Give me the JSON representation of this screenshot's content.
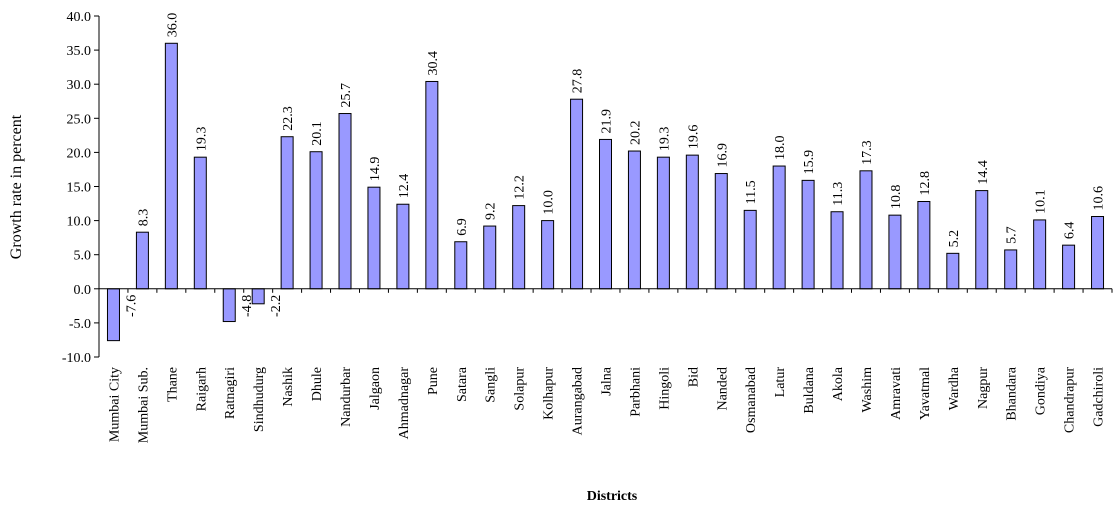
{
  "chart_data": {
    "type": "bar",
    "xlabel": "Districts",
    "ylabel": "Growth rate in percent",
    "ylim": [
      -10,
      40
    ],
    "yticks": [
      -10,
      -5,
      0,
      5,
      10,
      15,
      20,
      25,
      30,
      35,
      40
    ],
    "ytick_labels": [
      "-10.0",
      "-5.0",
      "0.0",
      "5.0",
      "10.0",
      "15.0",
      "20.0",
      "25.0",
      "30.0",
      "35.0",
      "40.0"
    ],
    "grid": false,
    "bar_color": "#9999ff",
    "bar_edge_color": "#000000",
    "categories": [
      "Mumbai City",
      "Mumbai Sub.",
      "Thane",
      "Raigarh",
      "Ratnagiri",
      "Sindhudurg",
      "Nashik",
      "Dhule",
      "Nandurbar",
      "Jalgaon",
      "Ahmadnagar",
      "Pune",
      "Satara",
      "Sangli",
      "Solapur",
      "Kolhapur",
      "Aurangabad",
      "Jalna",
      "Parbhani",
      "Hingoli",
      "Bid",
      "Nanded",
      "Osmanabad",
      "Latur",
      "Buldana",
      "Akola",
      "Washim",
      "Amravati",
      "Yavatmal",
      "Wardha",
      "Nagpur",
      "Bhandara",
      "Gondiya",
      "Chandrapur",
      "Gadchiroli"
    ],
    "values": [
      -7.6,
      8.3,
      36.0,
      19.3,
      -4.8,
      -2.2,
      22.3,
      20.1,
      25.7,
      14.9,
      12.4,
      30.4,
      6.9,
      9.2,
      12.2,
      10.0,
      27.8,
      21.9,
      20.2,
      19.3,
      19.6,
      16.9,
      11.5,
      18.0,
      15.9,
      11.3,
      17.3,
      10.8,
      12.8,
      5.2,
      14.4,
      5.7,
      10.1,
      6.4,
      10.6
    ],
    "data_labels": [
      "-7.6",
      "8.3",
      "36.0",
      "19.3",
      "-4.8",
      "-2.2",
      "22.3",
      "20.1",
      "25.7",
      "14.9",
      "12.4",
      "30.4",
      "6.9",
      "9.2",
      "12.2",
      "10.0",
      "27.8",
      "21.9",
      "20.2",
      "19.3",
      "19.6",
      "16.9",
      "11.5",
      "18.0",
      "15.9",
      "11.3",
      "17.3",
      "10.8",
      "12.8",
      "5.2",
      "14.4",
      "5.7",
      "10.1",
      "6.4",
      "10.6"
    ]
  }
}
